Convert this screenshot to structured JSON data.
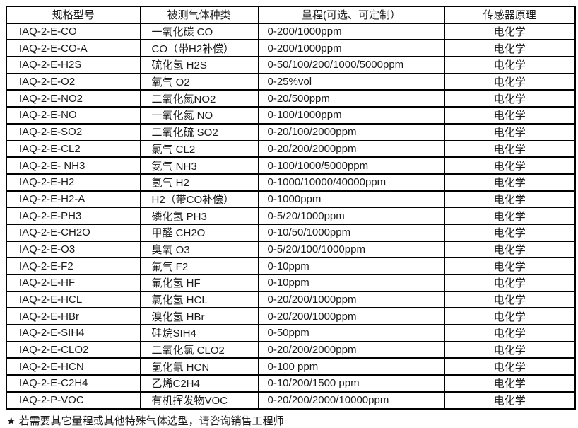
{
  "table": {
    "headers": [
      "规格型号",
      "被测气体种类",
      "量程(可选、可定制）",
      "传感器原理"
    ],
    "rows": [
      [
        "IAQ-2-E-CO",
        "一氧化碳 CO",
        "0-200/1000ppm",
        "电化学"
      ],
      [
        "IAQ-2-E-CO-A",
        "CO（带H2补偿）",
        "0-200/1000ppm",
        "电化学"
      ],
      [
        "IAQ-2-E-H2S",
        "硫化氢 H2S",
        "0-50/100/200/1000/5000ppm",
        "电化学"
      ],
      [
        "IAQ-2-E-O2",
        "氧气 O2",
        "0-25%vol",
        "电化学"
      ],
      [
        "IAQ-2-E-NO2",
        "二氧化氮NO2",
        "0-20/500ppm",
        "电化学"
      ],
      [
        "IAQ-2-E-NO",
        "一氧化氮 NO",
        "0-100/1000ppm",
        "电化学"
      ],
      [
        "IAQ-2-E-SO2",
        "二氧化硫 SO2",
        "0-20/100/2000ppm",
        "电化学"
      ],
      [
        "IAQ-2-E-CL2",
        "氯气 CL2",
        "0-20/200/2000ppm",
        "电化学"
      ],
      [
        "IAQ-2-E- NH3",
        "氨气 NH3",
        "0-100/1000/5000ppm",
        "电化学"
      ],
      [
        "IAQ-2-E-H2",
        "氢气 H2",
        "0-1000/10000/40000ppm",
        "电化学"
      ],
      [
        "IAQ-2-E-H2-A",
        "H2（带CO补偿）",
        "0-1000ppm",
        "电化学"
      ],
      [
        "IAQ-2-E-PH3",
        "磷化氢 PH3",
        "0-5/20/1000ppm",
        "电化学"
      ],
      [
        "IAQ-2-E-CH2O",
        "甲醛 CH2O",
        "0-10/50/1000ppm",
        "电化学"
      ],
      [
        "IAQ-2-E-O3",
        "臭氧 O3",
        "0-5/20/100/1000ppm",
        "电化学"
      ],
      [
        "IAQ-2-E-F2",
        "氟气 F2",
        "0-10ppm",
        "电化学"
      ],
      [
        "IAQ-2-E-HF",
        "氟化氢 HF",
        "0-10ppm",
        "电化学"
      ],
      [
        "IAQ-2-E-HCL",
        "氯化氢 HCL",
        "0-20/200/1000ppm",
        "电化学"
      ],
      [
        "IAQ-2-E-HBr",
        "溴化氢 HBr",
        "0-20/200/1000ppm",
        "电化学"
      ],
      [
        "IAQ-2-E-SIH4",
        "硅烷SIH4",
        "0-50ppm",
        "电化学"
      ],
      [
        "IAQ-2-E-CLO2",
        "二氧化氯 CLO2",
        "0-20/200/2000ppm",
        "电化学"
      ],
      [
        "IAQ-2-E-HCN",
        "氢化氰 HCN",
        "0-100 ppm",
        "电化学"
      ],
      [
        "IAQ-2-E-C2H4",
        "乙烯C2H4",
        "0-10/200/1500 ppm",
        "电化学"
      ],
      [
        "IAQ-2-P-VOC",
        "有机挥发物VOC",
        "0-20/200/2000/10000ppm",
        "电化学"
      ]
    ]
  },
  "footnote": "★ 若需要其它量程或其他特殊气体选型，请咨询销售工程师",
  "colors": {
    "text": "#1a1a1a",
    "border": "#000000",
    "background": "#ffffff"
  }
}
